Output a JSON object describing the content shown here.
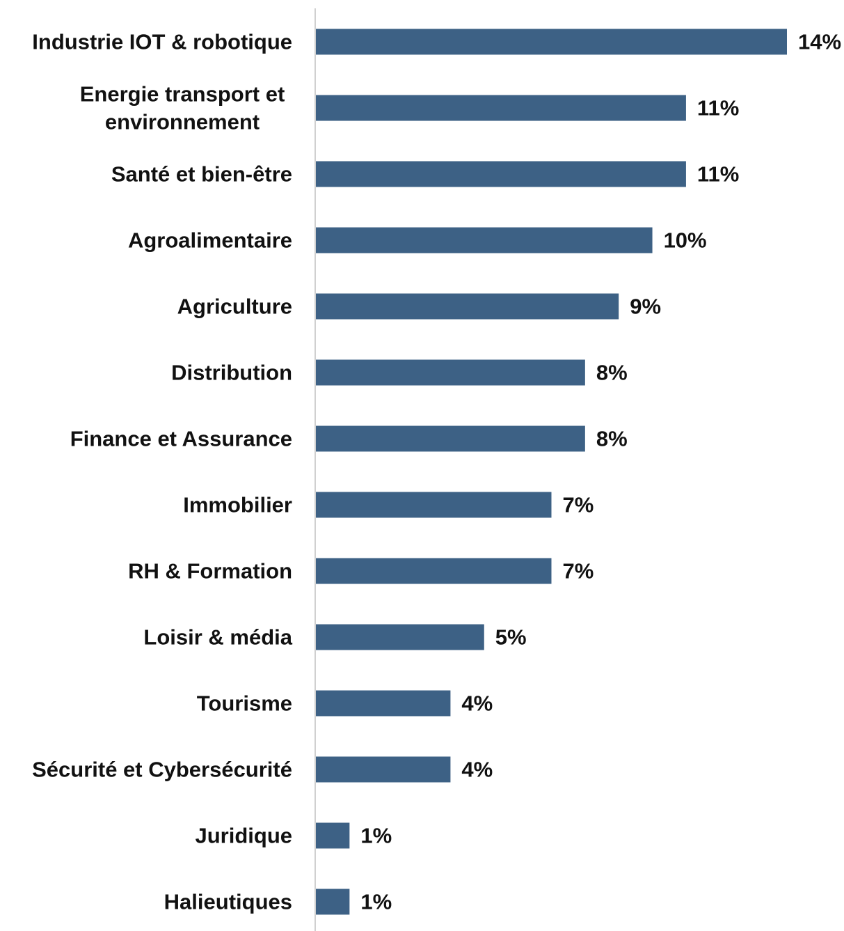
{
  "chart_data": {
    "type": "bar",
    "orientation": "horizontal",
    "categories": [
      [
        "Industrie IOT & robotique"
      ],
      [
        "Energie transport et",
        "environnement"
      ],
      [
        "Santé et bien-être"
      ],
      [
        "Agroalimentaire"
      ],
      [
        "Agriculture"
      ],
      [
        "Distribution"
      ],
      [
        "Finance et Assurance"
      ],
      [
        "Immobilier"
      ],
      [
        "RH & Formation"
      ],
      [
        "Loisir & média"
      ],
      [
        "Tourisme"
      ],
      [
        "Sécurité et Cybersécurité"
      ],
      [
        "Juridique"
      ],
      [
        "Halieutiques"
      ]
    ],
    "values": [
      14,
      11,
      11,
      10,
      9,
      8,
      8,
      7,
      7,
      5,
      4,
      4,
      1,
      1
    ],
    "value_labels": [
      "14%",
      "11%",
      "11%",
      "10%",
      "9%",
      "8%",
      "8%",
      "7%",
      "7%",
      "5%",
      "4%",
      "4%",
      "1%",
      "1%"
    ],
    "xlim": [
      0,
      14
    ],
    "grid": false,
    "bar_color": "#3d6185",
    "axis_color": "#d0d0d0",
    "text_color": "#111111"
  }
}
